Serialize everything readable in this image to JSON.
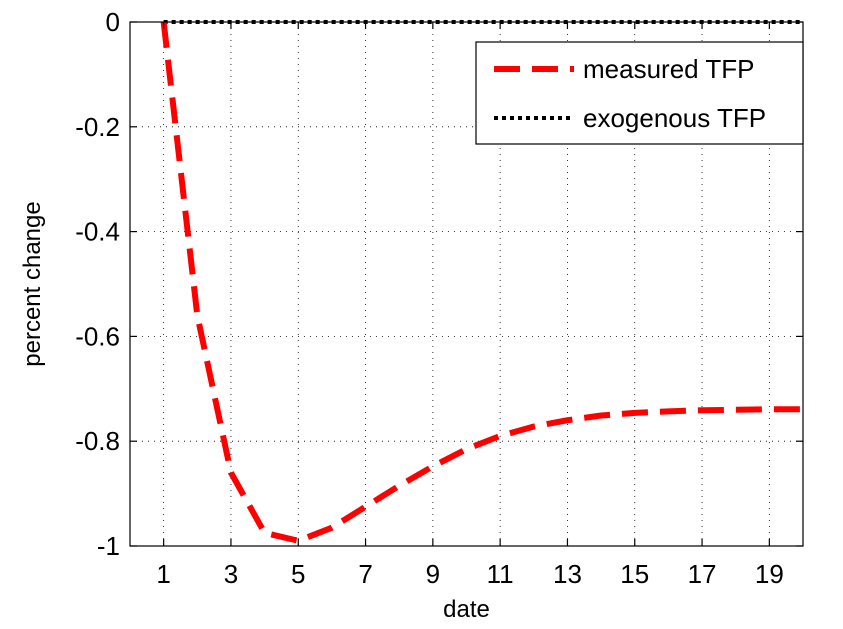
{
  "chart_data": {
    "type": "line",
    "title": "",
    "xlabel": "date",
    "ylabel": "percent change",
    "xlim": [
      0,
      20
    ],
    "ylim": [
      -1,
      0
    ],
    "xticks": [
      1,
      3,
      5,
      7,
      9,
      11,
      13,
      15,
      17,
      19
    ],
    "xtick_labels": [
      "1",
      "3",
      "5",
      "7",
      "9",
      "11",
      "13",
      "15",
      "17",
      "19"
    ],
    "yticks": [
      0,
      -0.2,
      -0.4,
      -0.6,
      -0.8,
      -1
    ],
    "ytick_labels": [
      "0",
      "-0.2",
      "-0.4",
      "-0.6",
      "-0.8",
      "-1"
    ],
    "grid": true,
    "legend_position": "top-right",
    "x": [
      1,
      2,
      3,
      4,
      5,
      6,
      7,
      8,
      9,
      10,
      11,
      12,
      13,
      14,
      15,
      16,
      17,
      18,
      19,
      20
    ],
    "series": [
      {
        "name": "measured TFP",
        "color": "#ff0000",
        "style": "dashed",
        "values": [
          0,
          -0.56,
          -0.86,
          -0.975,
          -0.99,
          -0.965,
          -0.925,
          -0.885,
          -0.848,
          -0.815,
          -0.79,
          -0.772,
          -0.76,
          -0.751,
          -0.746,
          -0.743,
          -0.741,
          -0.74,
          -0.739,
          -0.739
        ]
      },
      {
        "name": "exogenous TFP",
        "color": "#000000",
        "style": "dotted",
        "values": [
          0,
          0,
          0,
          0,
          0,
          0,
          0,
          0,
          0,
          0,
          0,
          0,
          0,
          0,
          0,
          0,
          0,
          0,
          0,
          0
        ]
      }
    ]
  }
}
